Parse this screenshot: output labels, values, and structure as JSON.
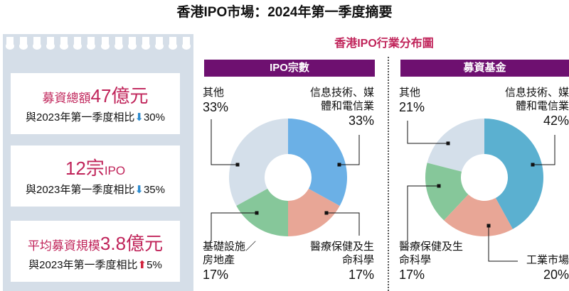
{
  "title": "香港IPO市場：2024年第一季度摘要",
  "summary": [
    {
      "label": "募資總額",
      "value": "47億元",
      "compare": "與2023年第一季度相比",
      "direction": "down",
      "change": "30%"
    },
    {
      "label": "",
      "value": "12宗",
      "value_suffix": "IPO",
      "compare": "與2023年第一季度相比",
      "direction": "down",
      "change": "35%"
    },
    {
      "label": "平均募資規模",
      "value": "3.8億元",
      "compare": "與2023年第一季度相比",
      "direction": "up",
      "change": "5%"
    }
  ],
  "section_title": "香港IPO行業分布圖",
  "colors": {
    "it_left": "#6bb0e6",
    "it_right": "#5bb0d0",
    "health": "#e8a696",
    "infra": "#86c79a",
    "industrial": "#e8a696",
    "other": "#d4dfea",
    "bar": "#6e1070",
    "accent": "#c0245a"
  },
  "chart_data": [
    {
      "type": "pie",
      "donut": true,
      "title": "IPO宗數",
      "categories": [
        "信息技術、媒體和電信業",
        "醫療保健及生命科學",
        "基礎設施／房地產",
        "其他"
      ],
      "values": [
        33,
        17,
        17,
        33
      ],
      "unit": "%"
    },
    {
      "type": "pie",
      "donut": true,
      "title": "募資基金",
      "categories": [
        "信息技術、媒體和電信業",
        "工業市場",
        "醫療保健及生命科學",
        "其他"
      ],
      "values": [
        42,
        20,
        17,
        21
      ],
      "unit": "%"
    }
  ]
}
